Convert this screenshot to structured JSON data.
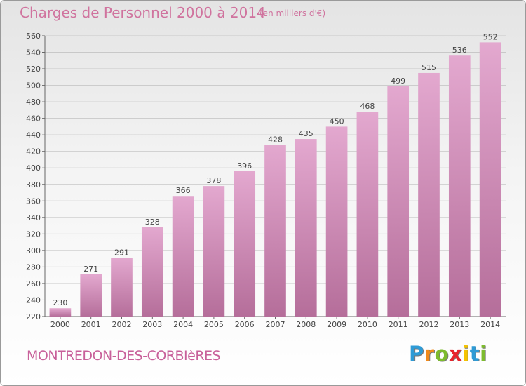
{
  "header": {
    "title": "Charges de Personnel 2000 à 2014",
    "subtitle": "(en milliers d'€)"
  },
  "footer": {
    "commune": "MONTREDON-DES-CORBIèRES",
    "brand": "Proxiti",
    "brand_letters": [
      {
        "char": "P",
        "color": "#2e9bd6"
      },
      {
        "char": "r",
        "color": "#f08a1c"
      },
      {
        "char": "o",
        "color": "#7dbb2e"
      },
      {
        "char": "x",
        "color": "#e8242c"
      },
      {
        "char": "i",
        "color": "#f5c400"
      },
      {
        "char": "t",
        "color": "#2e9bd6"
      },
      {
        "char": "i",
        "color": "#7dbb2e"
      }
    ]
  },
  "colors": {
    "bar_top": "#e3a8cf",
    "bar_bottom": "#b56e9a",
    "title": "#d0739e",
    "grid": "#c8c8c8"
  },
  "chart_data": {
    "type": "bar",
    "title": "Charges de Personnel 2000 à 2014",
    "subtitle": "(en milliers d'€)",
    "xlabel": "",
    "ylabel": "",
    "categories": [
      "2000",
      "2001",
      "2002",
      "2003",
      "2004",
      "2005",
      "2006",
      "2007",
      "2008",
      "2009",
      "2010",
      "2011",
      "2012",
      "2013",
      "2014"
    ],
    "values": [
      230,
      271,
      291,
      328,
      366,
      378,
      396,
      428,
      435,
      450,
      468,
      499,
      515,
      536,
      552
    ],
    "ylim": [
      220,
      560
    ],
    "ytick_step": 20,
    "grid": true
  }
}
